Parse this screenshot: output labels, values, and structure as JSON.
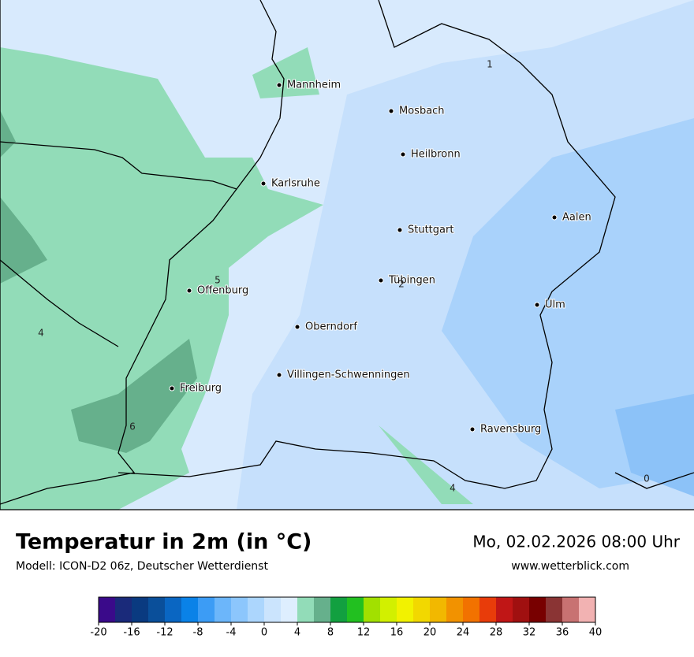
{
  "map": {
    "cities": [
      "Mannheim",
      "Mosbach",
      "Heilbronn",
      "Karlsruhe",
      "Aalen",
      "Stuttgart",
      "Tübingen",
      "Offenburg",
      "Ulm",
      "Oberndorf",
      "Villingen-Schwenningen",
      "Freiburg",
      "Ravensburg"
    ],
    "contour_labels": [
      1,
      5,
      2,
      4,
      6,
      4,
      0
    ]
  },
  "footer": {
    "title": "Temperatur in 2m (in °C)",
    "model": "Modell: ICON-D2 06z, Deutscher Wetterdienst",
    "datetime": "Mo, 02.02.2026 08:00 Uhr",
    "website": "www.wetterblick.com"
  },
  "legend": {
    "range": [
      -20,
      40
    ],
    "colors": [
      "#3a0a8a",
      "#1a2a7a",
      "#0a3a80",
      "#0a4f9a",
      "#0a66c2",
      "#0a82e8",
      "#3c9cf5",
      "#6cb6fa",
      "#8cc6fc",
      "#acd6fd",
      "#cbe4fd",
      "#deeefe",
      "#92dcb8",
      "#66b08c",
      "#12a040",
      "#22c020",
      "#a2e000",
      "#d2f000",
      "#f2f200",
      "#f2d800",
      "#f2b800",
      "#f29200",
      "#f27200",
      "#e83c0a",
      "#c01616",
      "#a01010",
      "#780000",
      "#8a3434",
      "#c87272",
      "#f2b2b2"
    ],
    "ticks": [
      -20,
      -16,
      -12,
      -8,
      -4,
      0,
      4,
      8,
      12,
      16,
      20,
      24,
      28,
      32,
      36,
      40
    ]
  }
}
